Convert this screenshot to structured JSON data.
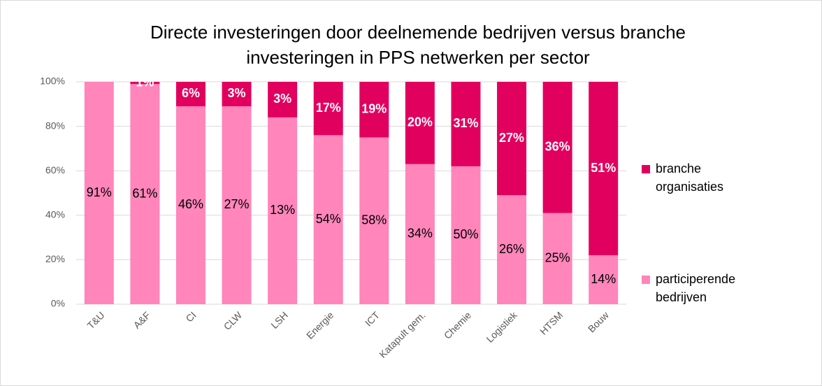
{
  "chart_data": {
    "type": "stacked_bar",
    "title": "Directe investeringen door deelnemende bedrijven versus branche",
    "subtitle": "investeringen in PPS netwerken per sector",
    "categories": [
      "T&U",
      "A&F",
      "CI",
      "CLW",
      "LSH",
      "Energie",
      "ICT",
      "Katapult gem.",
      "Chemie",
      "Logistiek",
      "HTSM",
      "Bouw"
    ],
    "series": [
      {
        "name": "participerende bedrijven",
        "color": "#ff85ba",
        "values": [
          100,
          99,
          89,
          89,
          84,
          76,
          75,
          63,
          62,
          49,
          41,
          22
        ],
        "label_texts": [
          "91%",
          "61%",
          "46%",
          "27%",
          "13%",
          "54%",
          "58%",
          "34%",
          "50%",
          "26%",
          "25%",
          "14%"
        ]
      },
      {
        "name": "branche organisaties",
        "color": "#e2005f",
        "values": [
          0,
          1,
          11,
          11,
          16,
          24,
          25,
          37,
          38,
          51,
          59,
          78
        ],
        "label_texts": [
          null,
          "1%",
          "6%",
          "3%",
          "3%",
          "17%",
          "19%",
          "20%",
          "31%",
          "27%",
          "36%",
          "51%"
        ]
      }
    ],
    "ylim": [
      0,
      100
    ],
    "yticks": [
      {
        "value": 0,
        "label": "0%"
      },
      {
        "value": 20,
        "label": "20%"
      },
      {
        "value": 40,
        "label": "40%"
      },
      {
        "value": 60,
        "label": "60%"
      },
      {
        "value": 80,
        "label": "80%"
      },
      {
        "value": 100,
        "label": "100%"
      }
    ],
    "grid": true,
    "legend": "right"
  }
}
